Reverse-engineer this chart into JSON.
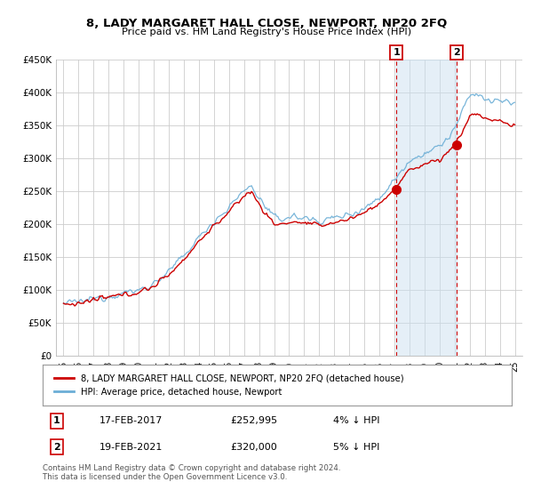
{
  "title": "8, LADY MARGARET HALL CLOSE, NEWPORT, NP20 2FQ",
  "subtitle": "Price paid vs. HM Land Registry's House Price Index (HPI)",
  "legend_line1": "8, LADY MARGARET HALL CLOSE, NEWPORT, NP20 2FQ (detached house)",
  "legend_line2": "HPI: Average price, detached house, Newport",
  "annotation1_date": "17-FEB-2017",
  "annotation1_price": "£252,995",
  "annotation1_hpi": "4% ↓ HPI",
  "annotation1_year": 2017.12,
  "annotation1_value": 252995,
  "annotation2_date": "19-FEB-2021",
  "annotation2_price": "£320,000",
  "annotation2_hpi": "5% ↓ HPI",
  "annotation2_year": 2021.12,
  "annotation2_value": 320000,
  "footer": "Contains HM Land Registry data © Crown copyright and database right 2024.\nThis data is licensed under the Open Government Licence v3.0.",
  "red_color": "#cc0000",
  "blue_color": "#6baed6",
  "blue_fill": "#cce0f0",
  "grid_color": "#cccccc",
  "bg_color": "#ffffff",
  "ylim": [
    0,
    450000
  ],
  "xlim_start": 1994.5,
  "xlim_end": 2025.5
}
